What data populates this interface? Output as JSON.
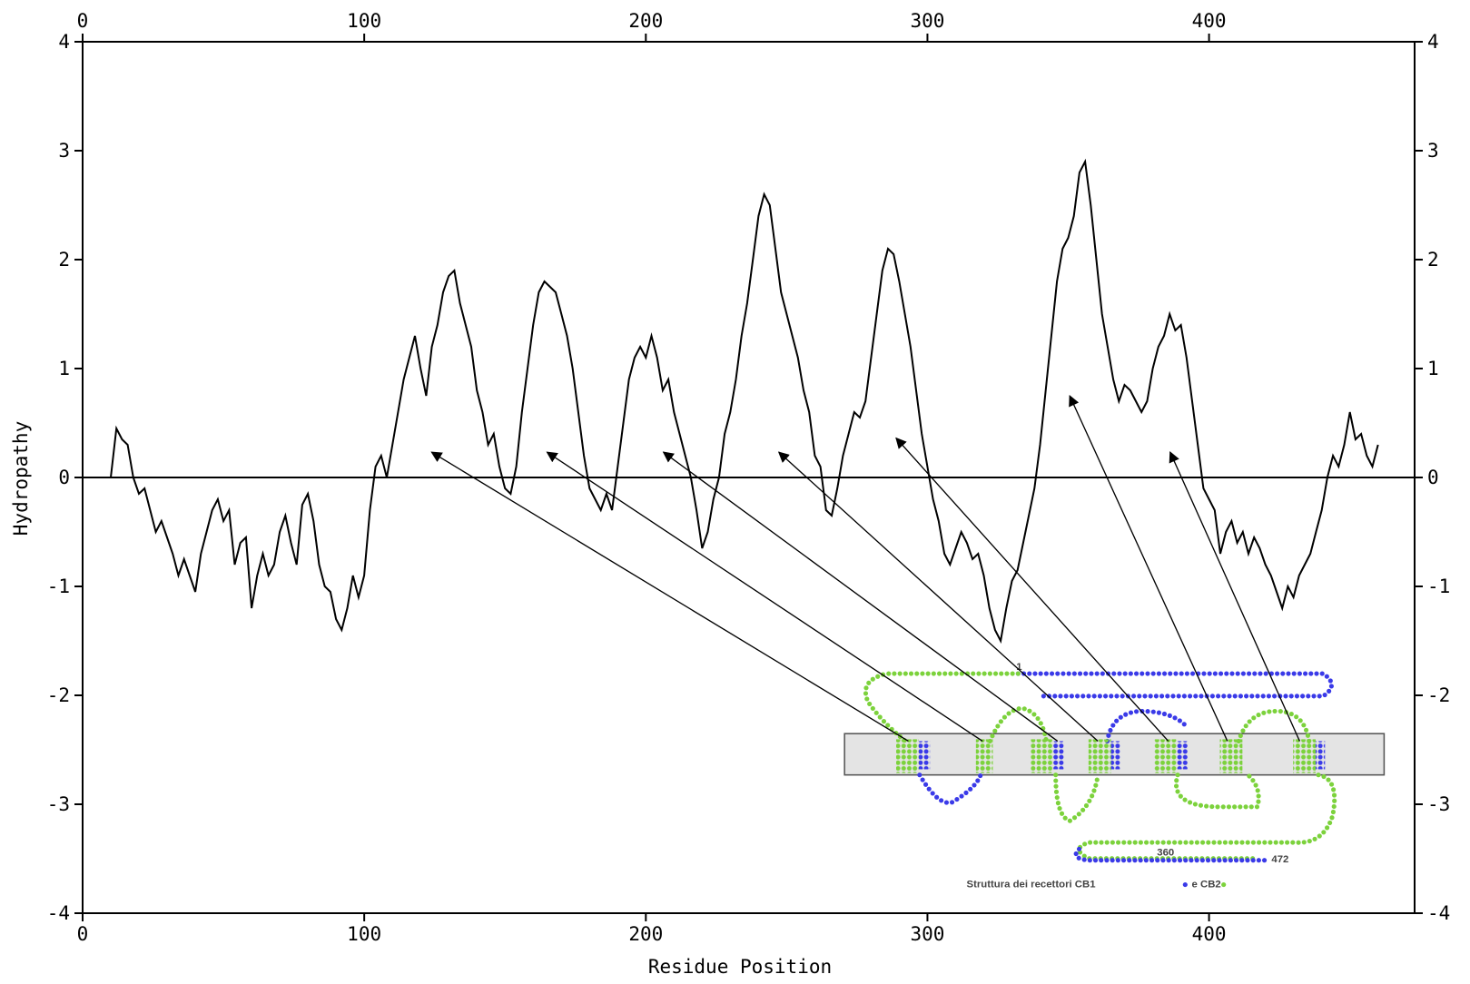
{
  "chart_data": {
    "type": "line",
    "xlabel": "Residue Position",
    "ylabel": "Hydropathy",
    "color": "#000000",
    "xlim": [
      0,
      473
    ],
    "xticks": [
      0,
      100,
      200,
      300,
      400
    ],
    "ylim": [
      -4,
      4
    ],
    "yticks": [
      -4,
      -3,
      -2,
      -1,
      0,
      1,
      2,
      3,
      4
    ],
    "x": [
      10,
      12,
      14,
      16,
      18,
      20,
      22,
      24,
      26,
      28,
      30,
      32,
      34,
      36,
      38,
      40,
      42,
      44,
      46,
      48,
      50,
      52,
      54,
      56,
      58,
      60,
      62,
      64,
      66,
      68,
      70,
      72,
      74,
      76,
      78,
      80,
      82,
      84,
      86,
      88,
      90,
      92,
      94,
      96,
      98,
      100,
      102,
      104,
      106,
      108,
      110,
      112,
      114,
      116,
      118,
      120,
      122,
      124,
      126,
      128,
      130,
      132,
      134,
      136,
      138,
      140,
      142,
      144,
      146,
      148,
      150,
      152,
      154,
      156,
      158,
      160,
      162,
      164,
      166,
      168,
      170,
      172,
      174,
      176,
      178,
      180,
      182,
      184,
      186,
      188,
      190,
      192,
      194,
      196,
      198,
      200,
      202,
      204,
      206,
      208,
      210,
      212,
      214,
      216,
      218,
      220,
      222,
      224,
      226,
      228,
      230,
      232,
      234,
      236,
      238,
      240,
      242,
      244,
      246,
      248,
      250,
      252,
      254,
      256,
      258,
      260,
      262,
      264,
      266,
      268,
      270,
      272,
      274,
      276,
      278,
      280,
      282,
      284,
      286,
      288,
      290,
      292,
      294,
      296,
      298,
      300,
      302,
      304,
      306,
      308,
      310,
      312,
      314,
      316,
      318,
      320,
      322,
      324,
      326,
      328,
      330,
      332,
      334,
      336,
      338,
      340,
      342,
      344,
      346,
      348,
      350,
      352,
      354,
      356,
      358,
      360,
      362,
      364,
      366,
      368,
      370,
      372,
      374,
      376,
      378,
      380,
      382,
      384,
      386,
      388,
      390,
      392,
      394,
      396,
      398,
      400,
      402,
      404,
      406,
      408,
      410,
      412,
      414,
      416,
      418,
      420,
      422,
      424,
      426,
      428,
      430,
      432,
      434,
      436,
      438,
      440,
      442,
      444,
      446,
      448,
      450,
      452,
      454,
      456,
      458,
      460
    ],
    "values": [
      0.0,
      0.45,
      0.35,
      0.3,
      0.0,
      -0.15,
      -0.1,
      -0.3,
      -0.5,
      -0.4,
      -0.55,
      -0.7,
      -0.9,
      -0.75,
      -0.9,
      -1.05,
      -0.7,
      -0.5,
      -0.3,
      -0.2,
      -0.4,
      -0.3,
      -0.8,
      -0.6,
      -0.55,
      -1.2,
      -0.9,
      -0.7,
      -0.9,
      -0.8,
      -0.5,
      -0.35,
      -0.6,
      -0.8,
      -0.25,
      -0.15,
      -0.4,
      -0.8,
      -1.0,
      -1.05,
      -1.3,
      -1.4,
      -1.2,
      -0.9,
      -1.1,
      -0.9,
      -0.3,
      0.1,
      0.2,
      0.0,
      0.3,
      0.6,
      0.9,
      1.1,
      1.3,
      1.0,
      0.75,
      1.2,
      1.4,
      1.7,
      1.85,
      1.9,
      1.6,
      1.4,
      1.2,
      0.8,
      0.6,
      0.3,
      0.4,
      0.1,
      -0.1,
      -0.15,
      0.1,
      0.6,
      1.0,
      1.4,
      1.7,
      1.8,
      1.75,
      1.7,
      1.5,
      1.3,
      1.0,
      0.6,
      0.2,
      -0.1,
      -0.2,
      -0.3,
      -0.15,
      -0.3,
      0.1,
      0.5,
      0.9,
      1.1,
      1.2,
      1.1,
      1.3,
      1.1,
      0.8,
      0.9,
      0.6,
      0.4,
      0.2,
      0.0,
      -0.3,
      -0.65,
      -0.5,
      -0.2,
      0.0,
      0.4,
      0.6,
      0.9,
      1.3,
      1.6,
      2.0,
      2.4,
      2.6,
      2.5,
      2.1,
      1.7,
      1.5,
      1.3,
      1.1,
      0.8,
      0.6,
      0.2,
      0.1,
      -0.3,
      -0.35,
      -0.1,
      0.2,
      0.4,
      0.6,
      0.55,
      0.7,
      1.1,
      1.5,
      1.9,
      2.1,
      2.05,
      1.8,
      1.5,
      1.2,
      0.8,
      0.4,
      0.1,
      -0.2,
      -0.4,
      -0.7,
      -0.8,
      -0.65,
      -0.5,
      -0.6,
      -0.75,
      -0.7,
      -0.9,
      -1.2,
      -1.4,
      -1.5,
      -1.2,
      -0.95,
      -0.85,
      -0.6,
      -0.35,
      -0.1,
      0.3,
      0.8,
      1.3,
      1.8,
      2.1,
      2.2,
      2.4,
      2.8,
      2.9,
      2.5,
      2.0,
      1.5,
      1.2,
      0.9,
      0.7,
      0.85,
      0.8,
      0.7,
      0.6,
      0.7,
      1.0,
      1.2,
      1.3,
      1.5,
      1.35,
      1.4,
      1.1,
      0.7,
      0.3,
      -0.1,
      -0.2,
      -0.3,
      -0.7,
      -0.5,
      -0.4,
      -0.6,
      -0.5,
      -0.7,
      -0.55,
      -0.65,
      -0.8,
      -0.9,
      -1.05,
      -1.2,
      -1.0,
      -1.1,
      -0.9,
      -0.8,
      -0.7,
      -0.5,
      -0.3,
      0.0,
      0.2,
      0.1,
      0.3,
      0.6,
      0.35,
      0.4,
      0.2,
      0.1,
      0.3
    ],
    "annotations": [
      "Struttura dei recettori CB1",
      "e CB2",
      "1",
      "360",
      "472"
    ]
  }
}
